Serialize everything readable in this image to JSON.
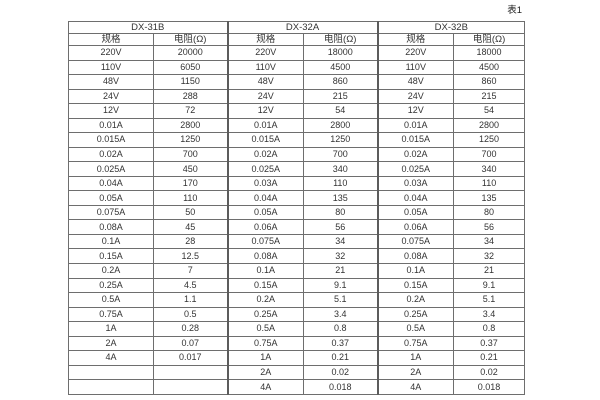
{
  "caption": "表1",
  "colors": {
    "background": "#ffffff",
    "border": "#666666",
    "text": "#333333"
  },
  "table": {
    "groups": [
      {
        "label": "DX-31B"
      },
      {
        "label": "DX-32A"
      },
      {
        "label": "DX-32B"
      }
    ],
    "subheaders": {
      "spec": "规格",
      "resistance": "电阻(Ω)"
    },
    "rows": [
      [
        "220V",
        "20000",
        "220V",
        "18000",
        "220V",
        "18000"
      ],
      [
        "110V",
        "6050",
        "110V",
        "4500",
        "110V",
        "4500"
      ],
      [
        "48V",
        "1150",
        "48V",
        "860",
        "48V",
        "860"
      ],
      [
        "24V",
        "288",
        "24V",
        "215",
        "24V",
        "215"
      ],
      [
        "12V",
        "72",
        "12V",
        "54",
        "12V",
        "54"
      ],
      [
        "0.01A",
        "2800",
        "0.01A",
        "2800",
        "0.01A",
        "2800"
      ],
      [
        "0.015A",
        "1250",
        "0.015A",
        "1250",
        "0.015A",
        "1250"
      ],
      [
        "0.02A",
        "700",
        "0.02A",
        "700",
        "0.02A",
        "700"
      ],
      [
        "0.025A",
        "450",
        "0.025A",
        "340",
        "0.025A",
        "340"
      ],
      [
        "0.04A",
        "170",
        "0.03A",
        "110",
        "0.03A",
        "110"
      ],
      [
        "0.05A",
        "110",
        "0.04A",
        "135",
        "0.04A",
        "135"
      ],
      [
        "0.075A",
        "50",
        "0.05A",
        "80",
        "0.05A",
        "80"
      ],
      [
        "0.08A",
        "45",
        "0.06A",
        "56",
        "0.06A",
        "56"
      ],
      [
        "0.1A",
        "28",
        "0.075A",
        "34",
        "0.075A",
        "34"
      ],
      [
        "0.15A",
        "12.5",
        "0.08A",
        "32",
        "0.08A",
        "32"
      ],
      [
        "0.2A",
        "7",
        "0.1A",
        "21",
        "0.1A",
        "21"
      ],
      [
        "0.25A",
        "4.5",
        "0.15A",
        "9.1",
        "0.15A",
        "9.1"
      ],
      [
        "0.5A",
        "1.1",
        "0.2A",
        "5.1",
        "0.2A",
        "5.1"
      ],
      [
        "0.75A",
        "0.5",
        "0.25A",
        "3.4",
        "0.25A",
        "3.4"
      ],
      [
        "1A",
        "0.28",
        "0.5A",
        "0.8",
        "0.5A",
        "0.8"
      ],
      [
        "2A",
        "0.07",
        "0.75A",
        "0.37",
        "0.75A",
        "0.37"
      ],
      [
        "4A",
        "0.017",
        "1A",
        "0.21",
        "1A",
        "0.21"
      ],
      [
        "",
        "",
        "2A",
        "0.02",
        "2A",
        "0.02"
      ],
      [
        "",
        "",
        "4A",
        "0.018",
        "4A",
        "0.018"
      ]
    ]
  }
}
